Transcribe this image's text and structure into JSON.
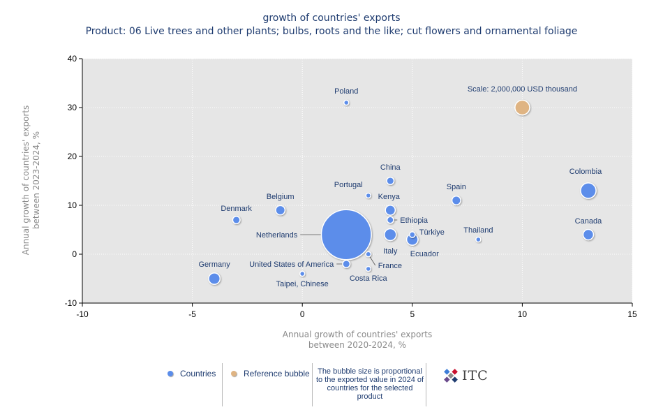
{
  "title": "growth of countries' exports",
  "subtitle": "Product: 06 Live trees and other plants; bulbs, roots and the like; cut flowers and ornamental foliage",
  "chart_data": {
    "type": "scatter",
    "subtype": "bubble",
    "title": "growth of countries' exports",
    "subtitle": "Product: 06 Live trees and other plants; bulbs, roots and the like; cut flowers and ornamental foliage",
    "xlabel_lines": [
      "Annual growth of countries' exports",
      "between 2020-2024, %"
    ],
    "ylabel_lines": [
      "Annual growth of countries' exports",
      "between 2023-2024, %"
    ],
    "xlim": [
      -10,
      15
    ],
    "ylim": [
      -10,
      40
    ],
    "xticks": [
      -10,
      -5,
      0,
      5,
      10,
      15
    ],
    "yticks": [
      -10,
      0,
      10,
      20,
      30,
      40
    ],
    "grid": true,
    "legend_position": "bottom",
    "colors": {
      "countries": "#5b8dea",
      "reference": "#dfb483",
      "plot_bg": "#e6e6e6",
      "label": "#1f3c70"
    },
    "points": [
      {
        "name": "Poland",
        "x": 2,
        "y": 31,
        "size": 0.02
      },
      {
        "name": "China",
        "x": 4,
        "y": 15,
        "size": 0.05
      },
      {
        "name": "Portugal",
        "x": 3,
        "y": 12,
        "size": 0.015
      },
      {
        "name": "Kenya",
        "x": 4,
        "y": 9,
        "size": 0.09
      },
      {
        "name": "Spain",
        "x": 7,
        "y": 11,
        "size": 0.07
      },
      {
        "name": "Colombia",
        "x": 13,
        "y": 13,
        "size": 0.22
      },
      {
        "name": "Belgium",
        "x": -1,
        "y": 9,
        "size": 0.08
      },
      {
        "name": "Denmark",
        "x": -3,
        "y": 7,
        "size": 0.05
      },
      {
        "name": "Netherlands",
        "x": 2,
        "y": 4,
        "size": 2.3
      },
      {
        "name": "Ethiopia",
        "x": 4,
        "y": 7,
        "size": 0.04
      },
      {
        "name": "Italy",
        "x": 4,
        "y": 4,
        "size": 0.13
      },
      {
        "name": "Türkiye",
        "x": 5,
        "y": 4,
        "size": 0.03
      },
      {
        "name": "Ecuador",
        "x": 5,
        "y": 3,
        "size": 0.12
      },
      {
        "name": "Thailand",
        "x": 8,
        "y": 3,
        "size": 0.015
      },
      {
        "name": "Canada",
        "x": 13,
        "y": 4,
        "size": 0.1
      },
      {
        "name": "France",
        "x": 3,
        "y": 0,
        "size": 0.025
      },
      {
        "name": "Germany",
        "x": -4,
        "y": -5,
        "size": 0.12
      },
      {
        "name": "United States of America",
        "x": 2,
        "y": -2,
        "size": 0.05
      },
      {
        "name": "Costa Rica",
        "x": 3,
        "y": -3,
        "size": 0.015
      },
      {
        "name": "Taipei, Chinese",
        "x": 0,
        "y": -4,
        "size": 0.015
      }
    ],
    "reference_bubble": {
      "label": "Scale: 2,000,000 USD thousand",
      "x": 10,
      "y": 30,
      "size": 0.2
    }
  },
  "legend": {
    "countries_label": "Countries",
    "reference_label": "Reference bubble",
    "note": "The bubble size is proportional to the exported value in 2024 of countries for the selected product"
  },
  "logo": {
    "text": "ITC"
  }
}
